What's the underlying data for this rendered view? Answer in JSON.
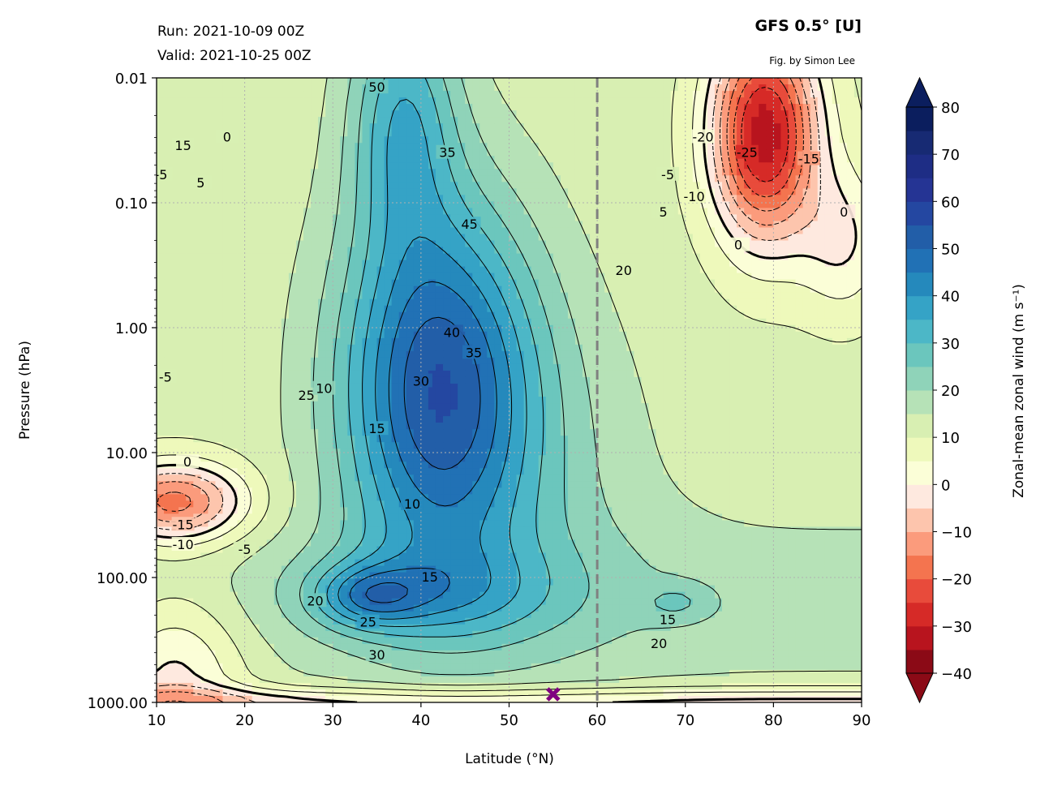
{
  "header": {
    "run": "Run: 2021-10-09 00Z",
    "valid": "Valid: 2021-10-25 00Z",
    "model": "GFS 0.5° [U]",
    "credit": "Fig. by Simon Lee"
  },
  "chart_data": {
    "type": "heatmap",
    "subtype": "filled contour (latitude–pressure cross-section)",
    "xlabel": "Latitude (°N)",
    "ylabel": "Pressure (hPa)",
    "xlim": [
      10,
      90
    ],
    "ylim": [
      1000,
      0.01
    ],
    "y_scale": "log",
    "x_ticks": [
      10,
      20,
      30,
      40,
      50,
      60,
      70,
      80,
      90
    ],
    "y_ticks": [
      "0.01",
      "0.10",
      "1.00",
      "10.00",
      "100.00",
      "1000.00"
    ],
    "grid": true,
    "reference_line": {
      "x": 60,
      "style": "dashed",
      "color": "#808080"
    },
    "marker": {
      "lat": 55,
      "pressure": 1000,
      "symbol": "x",
      "color": "#800080"
    },
    "colorbar": {
      "label": "Zonal-mean zonal wind (m s⁻¹)",
      "levels": [
        -40,
        -35,
        -30,
        -25,
        -20,
        -15,
        -10,
        -5,
        0,
        5,
        10,
        15,
        20,
        25,
        30,
        35,
        40,
        45,
        50,
        55,
        60,
        65,
        70,
        75,
        80
      ],
      "tick_labels": [
        "−40",
        "−30",
        "−20",
        "−10",
        "0",
        "10",
        "20",
        "30",
        "40",
        "50",
        "60",
        "70",
        "80"
      ],
      "colors": [
        "#8b0a16",
        "#b8141e",
        "#d62a27",
        "#e84b3b",
        "#f4744f",
        "#fb9b7c",
        "#fdc5ad",
        "#fee9df",
        "#fbfed7",
        "#eef9bb",
        "#d8efb2",
        "#b6e2b7",
        "#8fd3b9",
        "#6bc6bd",
        "#4cb7c7",
        "#35a3c6",
        "#2589bc",
        "#2171b5",
        "#225ea8",
        "#2447a1",
        "#253494",
        "#1e2d85",
        "#172a73",
        "#0b1e5e"
      ],
      "extend": "both"
    },
    "contour_labels": [
      "50",
      "35",
      "45",
      "40",
      "35",
      "30",
      "25",
      "20",
      "15",
      "10",
      "15",
      "20",
      "25",
      "30",
      "15",
      "20",
      "0",
      "5",
      "15",
      "10",
      "-15",
      "-10",
      "-5",
      "0",
      "-20",
      "-25",
      "-15",
      "-5",
      "-10",
      "5",
      "0",
      "0",
      "-5",
      "-5"
    ]
  }
}
